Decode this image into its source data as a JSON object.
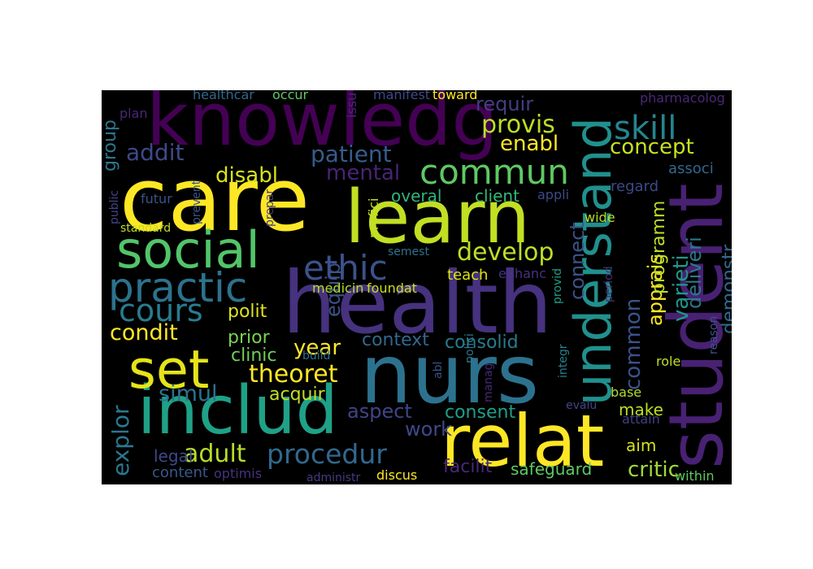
{
  "words": [
    {
      "text": "knowledg",
      "color": "#440154"
    },
    {
      "text": "care",
      "color": "#fde725"
    },
    {
      "text": "learn",
      "color": "#c2df23"
    },
    {
      "text": "health",
      "color": "#46327e"
    },
    {
      "text": "nurs",
      "color": "#2c728e"
    },
    {
      "text": "student",
      "color": "#482173"
    },
    {
      "text": "understand",
      "color": "#21908d"
    },
    {
      "text": "includ",
      "color": "#1fa187"
    },
    {
      "text": "relat",
      "color": "#fde725"
    },
    {
      "text": "social",
      "color": "#52c569"
    },
    {
      "text": "practic",
      "color": "#2c728e"
    },
    {
      "text": "set",
      "color": "#e5e419"
    },
    {
      "text": "ethic",
      "color": "#3b528b"
    },
    {
      "text": "commun",
      "color": "#5ec962"
    },
    {
      "text": "skill",
      "color": "#25858e"
    },
    {
      "text": "cours",
      "color": "#287c8e"
    },
    {
      "text": "develop",
      "color": "#bddf26"
    },
    {
      "text": "theoret",
      "color": "#fde725"
    },
    {
      "text": "procedur",
      "color": "#31688e"
    },
    {
      "text": "provis",
      "color": "#bddf26"
    },
    {
      "text": "enabl",
      "color": "#fde725"
    },
    {
      "text": "concept",
      "color": "#c8e020"
    },
    {
      "text": "disabl",
      "color": "#d8e219"
    },
    {
      "text": "patient",
      "color": "#365c8d"
    },
    {
      "text": "addit",
      "color": "#3e4989"
    },
    {
      "text": "mental",
      "color": "#482475"
    },
    {
      "text": "overal",
      "color": "#2fb47c"
    },
    {
      "text": "client",
      "color": "#35b779"
    },
    {
      "text": "condit",
      "color": "#fde725"
    },
    {
      "text": "polit",
      "color": "#dde318"
    },
    {
      "text": "year",
      "color": "#fde725"
    },
    {
      "text": "prior",
      "color": "#7ad151"
    },
    {
      "text": "clinic",
      "color": "#6ece58"
    },
    {
      "text": "simul",
      "color": "#2c728e"
    },
    {
      "text": "acquir",
      "color": "#c2df23"
    },
    {
      "text": "context",
      "color": "#31688e"
    },
    {
      "text": "consolid",
      "color": "#287c8e"
    },
    {
      "text": "aspect",
      "color": "#414487"
    },
    {
      "text": "work",
      "color": "#3e4989"
    },
    {
      "text": "consent",
      "color": "#1f9e89"
    },
    {
      "text": "adult",
      "color": "#b5de2b"
    },
    {
      "text": "legal",
      "color": "#3e4989"
    },
    {
      "text": "content",
      "color": "#38588c"
    },
    {
      "text": "explor",
      "color": "#2a788e"
    },
    {
      "text": "facilit",
      "color": "#482878"
    },
    {
      "text": "safeguard",
      "color": "#5ec962"
    },
    {
      "text": "critic",
      "color": "#a0da39"
    },
    {
      "text": "aim",
      "color": "#d8e219"
    },
    {
      "text": "make",
      "color": "#bddf26"
    },
    {
      "text": "demonstr",
      "color": "#30698e"
    },
    {
      "text": "apprais",
      "color": "#fde725"
    },
    {
      "text": "common",
      "color": "#3b528b"
    },
    {
      "text": "varieti",
      "color": "#1f988b"
    },
    {
      "text": "programm",
      "color": "#bddf26"
    },
    {
      "text": "deliveri",
      "color": "#2a788e"
    },
    {
      "text": "equip",
      "color": "#3b528b"
    },
    {
      "text": "connect",
      "color": "#3b528b"
    },
    {
      "text": "teach",
      "color": "#dde318"
    },
    {
      "text": "medicin",
      "color": "#b5de2b"
    },
    {
      "text": "foundat",
      "color": "#c8e020"
    },
    {
      "text": "requir",
      "color": "#433e85"
    },
    {
      "text": "group",
      "color": "#2a788e"
    },
    {
      "text": "regard",
      "color": "#3e4989"
    },
    {
      "text": "associ",
      "color": "#31688e"
    },
    {
      "text": "enhanc",
      "color": "#46327e"
    },
    {
      "text": "futur",
      "color": "#3b528b"
    },
    {
      "text": "appli",
      "color": "#3e4989"
    },
    {
      "text": "wide",
      "color": "#b5de2b"
    },
    {
      "text": "plan",
      "color": "#482878"
    },
    {
      "text": "occur",
      "color": "#5ec962"
    },
    {
      "text": "manifest",
      "color": "#3e4989"
    },
    {
      "text": "toward",
      "color": "#fde725"
    },
    {
      "text": "healthcar",
      "color": "#31688e"
    },
    {
      "text": "issu",
      "color": "#482878"
    },
    {
      "text": "pharmacolog",
      "color": "#482878"
    },
    {
      "text": "standard",
      "color": "#c2df23"
    },
    {
      "text": "public",
      "color": "#414487"
    },
    {
      "text": "prevent",
      "color": "#3b528b"
    },
    {
      "text": "prepar",
      "color": "#443a83"
    },
    {
      "text": "profici",
      "color": "#c8e020"
    },
    {
      "text": "semest",
      "color": "#2c728e"
    },
    {
      "text": "build",
      "color": "#2c728e"
    },
    {
      "text": "abl",
      "color": "#3b528b"
    },
    {
      "text": "polici",
      "color": "#2a788e"
    },
    {
      "text": "provid",
      "color": "#1f9e89"
    },
    {
      "text": "integr",
      "color": "#26828e"
    },
    {
      "text": "period",
      "color": "#46327e"
    },
    {
      "text": "manag",
      "color": "#482878"
    },
    {
      "text": "evalu",
      "color": "#414487"
    },
    {
      "text": "base",
      "color": "#b5de2b"
    },
    {
      "text": "role",
      "color": "#c2df23"
    },
    {
      "text": "attain",
      "color": "#433e85"
    },
    {
      "text": "reason",
      "color": "#3b528b"
    },
    {
      "text": "administr",
      "color": "#443a83"
    },
    {
      "text": "discus",
      "color": "#fde725"
    },
    {
      "text": "optimis",
      "color": "#46327e"
    },
    {
      "text": "within",
      "color": "#5ec962"
    }
  ]
}
